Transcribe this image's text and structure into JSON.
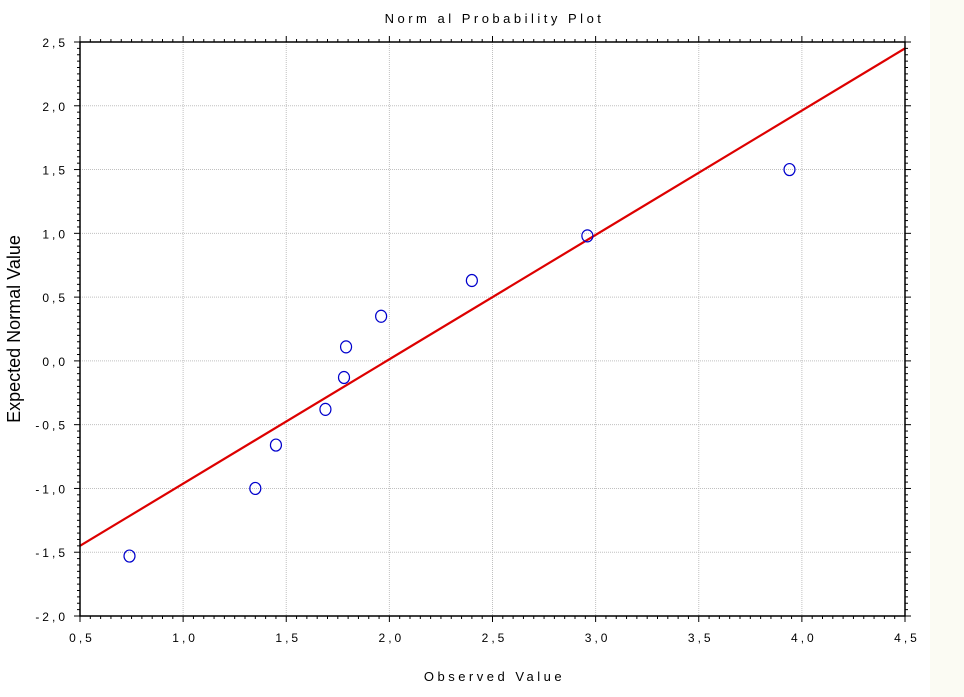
{
  "chart_data": {
    "type": "scatter",
    "title": "Norm al Probability Plot",
    "xlabel": "Observed Value",
    "ylabel": "Expected Normal Value",
    "xlim": [
      0.5,
      4.5
    ],
    "ylim": [
      -2.0,
      2.5
    ],
    "x_ticks": [
      0.5,
      1.0,
      1.5,
      2.0,
      2.5,
      3.0,
      3.5,
      4.0,
      4.5
    ],
    "y_ticks": [
      -2.0,
      -1.5,
      -1.0,
      -0.5,
      0.0,
      0.5,
      1.0,
      1.5,
      2.0,
      2.5
    ],
    "x_tick_labels": [
      "0,5",
      "1,0",
      "1,5",
      "2,0",
      "2,5",
      "3,0",
      "3,5",
      "4,0",
      "4,5"
    ],
    "y_tick_labels": [
      "-2,0",
      "-1,5",
      "-1,0",
      "-0,5",
      "0,0",
      "0,5",
      "1,0",
      "1,5",
      "2,0",
      "2,5"
    ],
    "grid": true,
    "points": [
      {
        "x": 0.74,
        "y": -1.53
      },
      {
        "x": 1.35,
        "y": -1.0
      },
      {
        "x": 1.45,
        "y": -0.66
      },
      {
        "x": 1.69,
        "y": -0.38
      },
      {
        "x": 1.78,
        "y": -0.13
      },
      {
        "x": 1.79,
        "y": 0.11
      },
      {
        "x": 1.96,
        "y": 0.35
      },
      {
        "x": 2.4,
        "y": 0.63
      },
      {
        "x": 2.96,
        "y": 0.98
      },
      {
        "x": 3.94,
        "y": 1.5
      }
    ],
    "fit_line": {
      "x": [
        0.5,
        4.5
      ],
      "y": [
        -1.45,
        2.45
      ]
    },
    "colors": {
      "points": "#0000cc",
      "fit_line": "#dd0000",
      "grid": "#c0c0c0",
      "axis": "#000000"
    }
  }
}
